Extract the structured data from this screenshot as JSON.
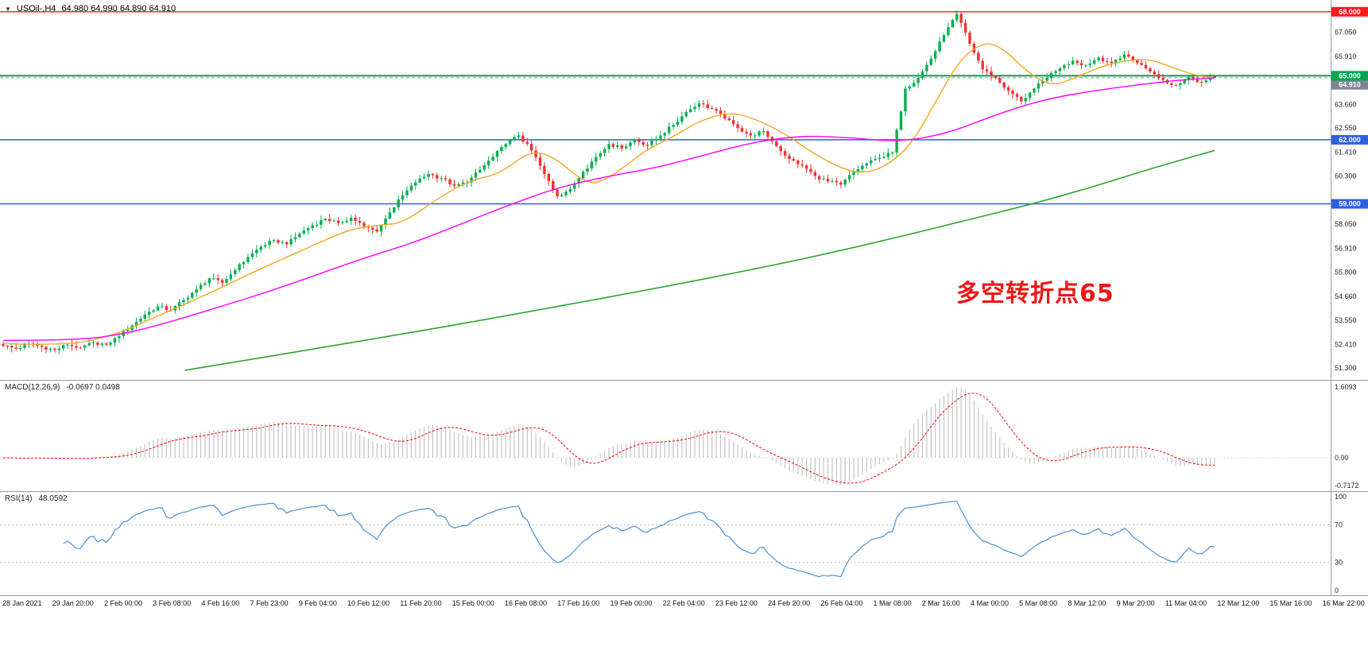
{
  "header": {
    "marker": "▼",
    "symbol": "USOil-,H4",
    "ohlc": "64.980 64.990 64.890 64.910"
  },
  "annotation": {
    "text": "多空转折点65",
    "color": "#f01414"
  },
  "colors": {
    "candle_up": "#00b050",
    "candle_down": "#f23030",
    "macd_hist": "#c4c4c4",
    "macd_signal": "#ff0000",
    "rsi_line": "#4a8fd4",
    "axis_text": "#222222",
    "badge_text": "#ffffff",
    "grid_dotted": "#c8c8c8",
    "panel_border": "#9b9b9b"
  },
  "indicators": {
    "macd": {
      "label": "MACD(12,26,9)",
      "values": "-0.0697 0.0498"
    },
    "rsi": {
      "label": "RSI(14)",
      "value": "48.0592"
    }
  },
  "price_axis": {
    "plain_labels": [
      67.05,
      65.91,
      63.66,
      62.55,
      61.41,
      60.3,
      58.05,
      56.91,
      55.8,
      54.66,
      53.55,
      52.41,
      51.3
    ]
  },
  "time_axis": [
    "28 Jan 2021",
    "29 Jan 20:00",
    "2 Feb 00:00",
    "3 Feb 08:00",
    "4 Feb 16:00",
    "7 Feb 23:00",
    "9 Feb 04:00",
    "10 Feb 12:00",
    "11 Feb 20:00",
    "15 Feb 00:00",
    "16 Feb 08:00",
    "17 Feb 16:00",
    "19 Feb 00:00",
    "22 Feb 04:00",
    "23 Feb 12:00",
    "24 Feb 20:00",
    "26 Feb 04:00",
    "1 Mar 08:00",
    "2 Mar 16:00",
    "4 Mar 00:00",
    "5 Mar 08:00",
    "8 Mar 12:00",
    "9 Mar 20:00",
    "11 Mar 04:00",
    "12 Mar 12:00",
    "15 Mar 16:00",
    "16 Mar 22:00"
  ],
  "chart_data": {
    "type": "candlestick",
    "symbol": "USOil",
    "timeframe": "H4",
    "title": "USOil-,H4 64.980 64.990 64.890 64.910",
    "ohlc_current": {
      "open": 64.98,
      "high": 64.99,
      "low": 64.89,
      "close": 64.91
    },
    "price_range": [
      50.75,
      68.55
    ],
    "main": {
      "close_waypoints": [
        52.35,
        52.2,
        52.45,
        52.3,
        52.15,
        52.4,
        52.25,
        52.5,
        52.4,
        52.8,
        53.3,
        53.8,
        54.2,
        54.0,
        54.5,
        55.0,
        55.5,
        55.3,
        55.9,
        56.5,
        57.0,
        57.3,
        57.1,
        57.6,
        58.0,
        58.3,
        58.1,
        58.35,
        57.95,
        57.7,
        58.6,
        59.4,
        60.0,
        60.4,
        60.2,
        59.85,
        60.0,
        60.6,
        61.2,
        61.8,
        62.2,
        61.5,
        60.4,
        59.35,
        59.7,
        60.5,
        61.2,
        61.8,
        61.6,
        62.0,
        61.75,
        62.2,
        62.7,
        63.3,
        63.7,
        63.45,
        63.0,
        62.55,
        62.2,
        62.4,
        61.7,
        61.1,
        60.8,
        60.3,
        60.05,
        59.9,
        60.5,
        60.9,
        61.15,
        61.4,
        64.4,
        64.9,
        65.8,
        66.9,
        67.9,
        66.5,
        65.3,
        64.9,
        64.3,
        63.8,
        64.4,
        64.9,
        65.35,
        65.7,
        65.5,
        65.85,
        65.6,
        66.0,
        65.6,
        65.2,
        64.8,
        64.55,
        64.95,
        64.7,
        64.91
      ],
      "moving_averages": [
        {
          "name": "ma-fast-line",
          "color": "#f5a623",
          "width": 1.4,
          "points": [
            [
              0,
              52.45
            ],
            [
              0.05,
              52.35
            ],
            [
              0.09,
              52.8
            ],
            [
              0.13,
              53.8
            ],
            [
              0.17,
              54.8
            ],
            [
              0.21,
              55.9
            ],
            [
              0.25,
              56.9
            ],
            [
              0.285,
              57.8
            ],
            [
              0.31,
              58.0
            ],
            [
              0.33,
              58.1
            ],
            [
              0.36,
              59.3
            ],
            [
              0.385,
              60.1
            ],
            [
              0.41,
              60.4
            ],
            [
              0.435,
              61.5
            ],
            [
              0.455,
              61.2
            ],
            [
              0.475,
              60.2
            ],
            [
              0.49,
              59.9
            ],
            [
              0.51,
              60.6
            ],
            [
              0.53,
              61.5
            ],
            [
              0.555,
              62.2
            ],
            [
              0.575,
              62.9
            ],
            [
              0.6,
              63.3
            ],
            [
              0.62,
              63.0
            ],
            [
              0.645,
              62.3
            ],
            [
              0.665,
              61.5
            ],
            [
              0.69,
              60.7
            ],
            [
              0.71,
              60.4
            ],
            [
              0.73,
              60.8
            ],
            [
              0.75,
              61.8
            ],
            [
              0.77,
              63.8
            ],
            [
              0.79,
              65.8
            ],
            [
              0.81,
              66.6
            ],
            [
              0.825,
              66.3
            ],
            [
              0.845,
              65.2
            ],
            [
              0.865,
              64.5
            ],
            [
              0.885,
              64.9
            ],
            [
              0.905,
              65.4
            ],
            [
              0.925,
              65.7
            ],
            [
              0.945,
              65.8
            ],
            [
              0.965,
              65.4
            ],
            [
              0.985,
              65.0
            ],
            [
              1,
              64.9
            ]
          ]
        },
        {
          "name": "ma-mid-line",
          "color": "#ff00ff",
          "width": 1.4,
          "points": [
            [
              0,
              52.6
            ],
            [
              0.06,
              52.6
            ],
            [
              0.1,
              52.9
            ],
            [
              0.14,
              53.5
            ],
            [
              0.18,
              54.2
            ],
            [
              0.22,
              54.9
            ],
            [
              0.26,
              55.7
            ],
            [
              0.3,
              56.5
            ],
            [
              0.34,
              57.2
            ],
            [
              0.38,
              58.1
            ],
            [
              0.42,
              59.0
            ],
            [
              0.46,
              59.8
            ],
            [
              0.5,
              60.3
            ],
            [
              0.54,
              60.7
            ],
            [
              0.58,
              61.3
            ],
            [
              0.62,
              61.9
            ],
            [
              0.66,
              62.2
            ],
            [
              0.7,
              62.1
            ],
            [
              0.74,
              61.9
            ],
            [
              0.78,
              62.3
            ],
            [
              0.82,
              63.2
            ],
            [
              0.86,
              63.9
            ],
            [
              0.9,
              64.3
            ],
            [
              0.94,
              64.6
            ],
            [
              0.97,
              64.8
            ],
            [
              1,
              64.9
            ]
          ]
        },
        {
          "name": "ma-slow-line",
          "color": "#28a428",
          "width": 1.6,
          "points": [
            [
              0.15,
              51.2
            ],
            [
              0.3,
              52.6
            ],
            [
              0.45,
              54.1
            ],
            [
              0.6,
              55.7
            ],
            [
              0.7,
              56.9
            ],
            [
              0.8,
              58.3
            ],
            [
              0.85,
              59.0
            ],
            [
              0.9,
              59.8
            ],
            [
              0.95,
              60.7
            ],
            [
              1,
              61.5
            ]
          ]
        }
      ],
      "levels": [
        {
          "price": 68.0,
          "label": "68.000",
          "color": "#ff1a1a",
          "badge": "#ff1a1a",
          "width": 1.3,
          "badge_dy": 0
        },
        {
          "price": 64.91,
          "label": "64.910",
          "color": "#8a939e",
          "badge": "#7d8691",
          "width": 1,
          "dash": "4,3",
          "badge_dy": 9
        },
        {
          "price": 65.0,
          "label": "65.000",
          "color": "#00a651",
          "badge": "#00a651",
          "width": 2,
          "badge_dy": 0
        },
        {
          "price": 62.0,
          "label": "62.000",
          "color": "#2e5fe0",
          "badge": "#2e5fe0",
          "width": 1.5,
          "badge_dy": 0
        },
        {
          "price": 59.0,
          "label": "59.000",
          "color": "#2e5fe0",
          "badge": "#2e5fe0",
          "width": 1.5,
          "badge_dy": 0
        }
      ]
    },
    "macd": {
      "fast": 12,
      "slow": 26,
      "signal": 9,
      "current_main": -0.0697,
      "current_signal": 0.0498,
      "axis_labels": {
        "max": "1.6093",
        "zero": "0.00",
        "min": "-0.7172"
      }
    },
    "rsi": {
      "period": 14,
      "current": 48.0592,
      "axis": [
        100,
        70,
        30,
        0
      ],
      "levels": [
        70,
        30
      ]
    }
  }
}
